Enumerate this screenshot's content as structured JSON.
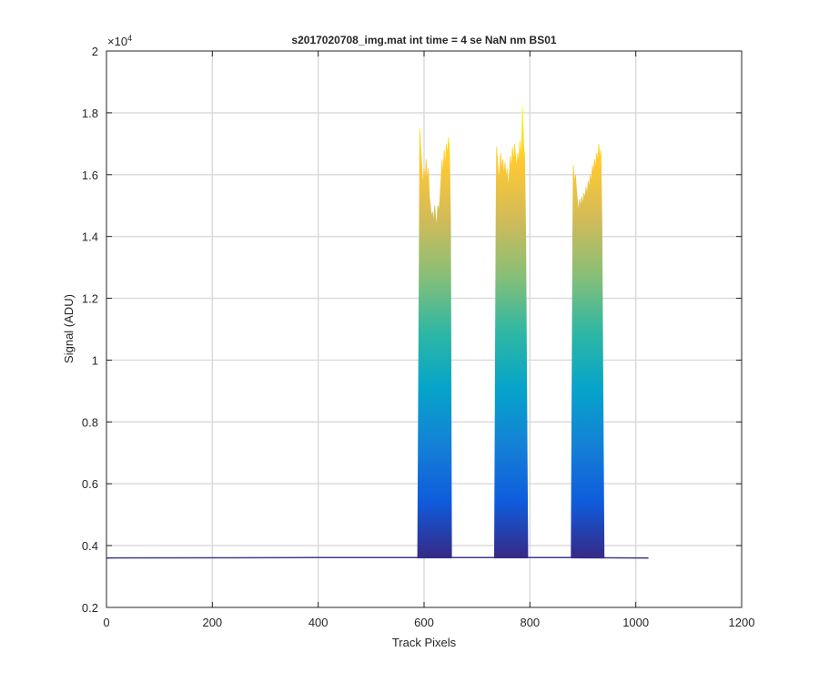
{
  "chart_data": {
    "type": "area",
    "title": "s2017020708_img.mat int time = 4 se  NaN nm BS01",
    "xlabel": "Track Pixels",
    "ylabel": "Signal (ADU)",
    "xlim": [
      0,
      1200
    ],
    "ylim": [
      2000,
      20000
    ],
    "x_ticks": [
      0,
      200,
      400,
      600,
      800,
      1000,
      1200
    ],
    "x_tick_labels": [
      "0",
      "200",
      "400",
      "600",
      "800",
      "1000",
      "1200"
    ],
    "y_ticks": [
      2000,
      4000,
      6000,
      8000,
      10000,
      12000,
      14000,
      16000,
      18000,
      20000
    ],
    "y_tick_labels": [
      "0.2",
      "0.4",
      "0.6",
      "0.8",
      "1",
      "1.2",
      "1.4",
      "1.6",
      "1.8",
      "2"
    ],
    "y_exponent_label": "×10",
    "y_exponent_power": "4",
    "grid": true,
    "colormap": "parula",
    "colormap_stops": [
      "#352a87",
      "#0f5cdd",
      "#1481d6",
      "#06a4ca",
      "#2eb7a4",
      "#87bf77",
      "#d1bb59",
      "#fec832",
      "#f9fb0e"
    ],
    "baseline_color": "#3b3f8f",
    "baseline": [
      [
        0,
        3600
      ],
      [
        200,
        3605
      ],
      [
        400,
        3610
      ],
      [
        580,
        3615
      ],
      [
        650,
        3610
      ],
      [
        730,
        3615
      ],
      [
        795,
        3612
      ],
      [
        875,
        3610
      ],
      [
        940,
        3605
      ],
      [
        1024,
        3600
      ]
    ],
    "peaks": [
      {
        "x_start": 588,
        "x_end": 652,
        "profile": [
          [
            588,
            3650
          ],
          [
            591,
            14000
          ],
          [
            592,
            17500
          ],
          [
            594,
            16800
          ],
          [
            596,
            16200
          ],
          [
            598,
            15600
          ],
          [
            600,
            16200
          ],
          [
            602,
            15800
          ],
          [
            604,
            16500
          ],
          [
            606,
            15700
          ],
          [
            608,
            16200
          ],
          [
            610,
            15300
          ],
          [
            612,
            15000
          ],
          [
            614,
            14600
          ],
          [
            616,
            14800
          ],
          [
            618,
            14400
          ],
          [
            620,
            15000
          ],
          [
            622,
            14600
          ],
          [
            624,
            14300
          ],
          [
            626,
            15000
          ],
          [
            628,
            14800
          ],
          [
            630,
            15200
          ],
          [
            632,
            15800
          ],
          [
            634,
            16500
          ],
          [
            636,
            15900
          ],
          [
            638,
            16800
          ],
          [
            640,
            16200
          ],
          [
            642,
            17000
          ],
          [
            644,
            16600
          ],
          [
            646,
            17200
          ],
          [
            648,
            16800
          ],
          [
            650,
            14500
          ],
          [
            652,
            3650
          ]
        ]
      },
      {
        "x_start": 733,
        "x_end": 796,
        "profile": [
          [
            733,
            3650
          ],
          [
            736,
            14500
          ],
          [
            737,
            16900
          ],
          [
            739,
            16400
          ],
          [
            741,
            15800
          ],
          [
            743,
            16200
          ],
          [
            745,
            16700
          ],
          [
            747,
            16100
          ],
          [
            749,
            16500
          ],
          [
            751,
            15900
          ],
          [
            753,
            16400
          ],
          [
            755,
            15800
          ],
          [
            757,
            16200
          ],
          [
            759,
            15500
          ],
          [
            761,
            16000
          ],
          [
            763,
            16600
          ],
          [
            765,
            16100
          ],
          [
            767,
            16900
          ],
          [
            769,
            16400
          ],
          [
            771,
            17000
          ],
          [
            773,
            16600
          ],
          [
            775,
            16200
          ],
          [
            777,
            16700
          ],
          [
            779,
            16300
          ],
          [
            781,
            17100
          ],
          [
            783,
            16500
          ],
          [
            785,
            17400
          ],
          [
            786,
            18200
          ],
          [
            788,
            17000
          ],
          [
            790,
            16600
          ],
          [
            792,
            14000
          ],
          [
            796,
            3650
          ]
        ]
      },
      {
        "x_start": 878,
        "x_end": 940,
        "profile": [
          [
            878,
            3650
          ],
          [
            881,
            14000
          ],
          [
            882,
            16300
          ],
          [
            884,
            15700
          ],
          [
            886,
            16000
          ],
          [
            888,
            15500
          ],
          [
            890,
            15100
          ],
          [
            892,
            14800
          ],
          [
            894,
            15200
          ],
          [
            896,
            14900
          ],
          [
            898,
            15300
          ],
          [
            900,
            15000
          ],
          [
            902,
            15400
          ],
          [
            904,
            15200
          ],
          [
            906,
            15600
          ],
          [
            908,
            15300
          ],
          [
            910,
            15800
          ],
          [
            912,
            15500
          ],
          [
            914,
            16000
          ],
          [
            916,
            15700
          ],
          [
            918,
            16300
          ],
          [
            920,
            16000
          ],
          [
            922,
            16500
          ],
          [
            924,
            16200
          ],
          [
            926,
            16700
          ],
          [
            928,
            16400
          ],
          [
            930,
            17000
          ],
          [
            932,
            16500
          ],
          [
            934,
            16800
          ],
          [
            936,
            14500
          ],
          [
            940,
            3650
          ]
        ]
      }
    ]
  }
}
